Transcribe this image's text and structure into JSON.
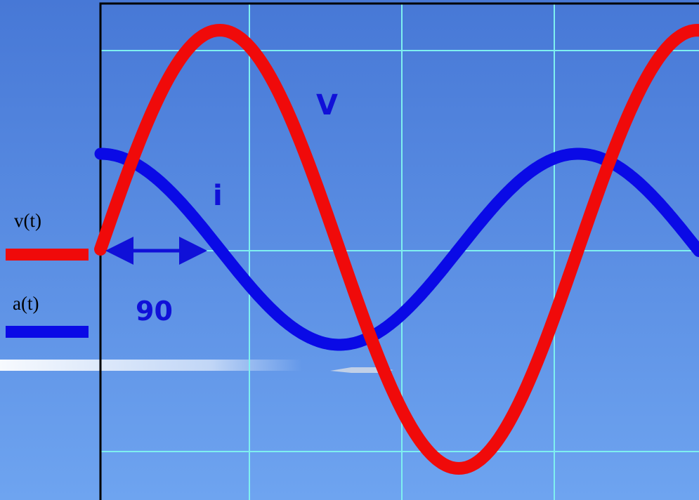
{
  "legend": [
    {
      "label": "v(t)"
    },
    {
      "label": "a(t)"
    }
  ],
  "annotations": {
    "voltage": "V",
    "current": "i",
    "phase": "90"
  }
}
